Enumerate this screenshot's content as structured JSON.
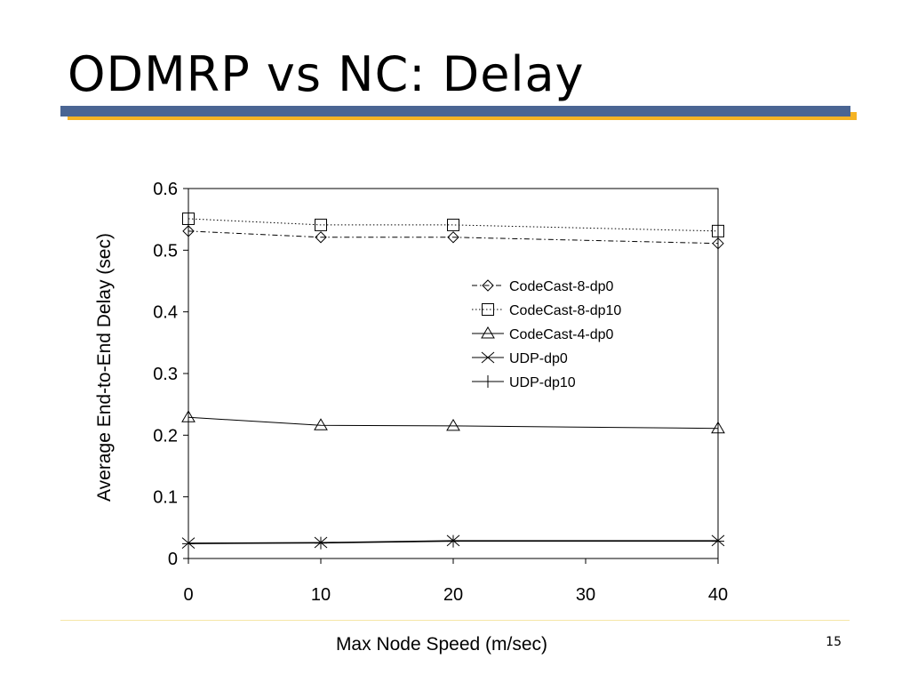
{
  "slide": {
    "title": "ODMRP vs NC: Delay",
    "page_number": "15",
    "colors": {
      "title_rule": "#4a6593",
      "title_rule_shadow": "#f5b324",
      "footer_rule": "#f5e6a8"
    }
  },
  "chart_data": {
    "type": "line",
    "title": "",
    "xlabel": "Max Node Speed (m/sec)",
    "ylabel": "Average End-to-End Delay (sec)",
    "xlim": [
      0,
      40
    ],
    "ylim": [
      0,
      0.6
    ],
    "xticks": [
      "0",
      "10",
      "20",
      "30",
      "40"
    ],
    "yticks": [
      "0",
      "0.1",
      "0.2",
      "0.3",
      "0.4",
      "0.5",
      "0.6"
    ],
    "grid": false,
    "legend_position": "right",
    "x": [
      0,
      10,
      20,
      40
    ],
    "series": [
      {
        "name": "CodeCast-8-dp0",
        "values": [
          0.531,
          0.521,
          0.521,
          0.511
        ],
        "marker": "diamond",
        "line_style": "dash-dot"
      },
      {
        "name": "CodeCast-8-dp10",
        "values": [
          0.551,
          0.541,
          0.541,
          0.531
        ],
        "marker": "square",
        "line_style": "dotted"
      },
      {
        "name": "CodeCast-4-dp0",
        "values": [
          0.229,
          0.216,
          0.215,
          0.211
        ],
        "marker": "triangle",
        "line_style": "solid"
      },
      {
        "name": "UDP-dp0",
        "values": [
          0.025,
          0.026,
          0.029,
          0.029
        ],
        "marker": "x",
        "line_style": "solid"
      },
      {
        "name": "UDP-dp10",
        "values": [
          0.024,
          0.025,
          0.028,
          0.028
        ],
        "marker": "plus",
        "line_style": "solid"
      }
    ]
  }
}
